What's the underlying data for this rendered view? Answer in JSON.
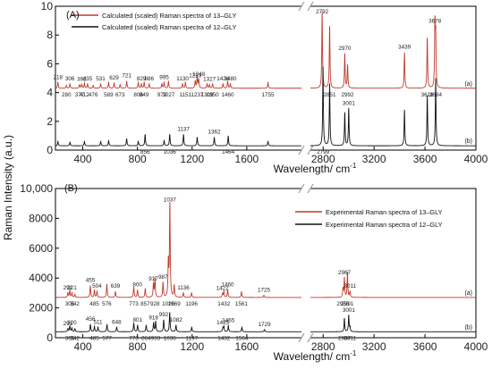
{
  "ylabel": "Raman Intensity (a.u.)",
  "xlabel": "Wavelength/ cm",
  "xlabel_sup": "-1",
  "colors": {
    "red": "#c0392b",
    "black": "#111111",
    "break": "#9a9a9a"
  },
  "chart_data": [
    {
      "type": "line",
      "panel_label": "(A)",
      "xlim_left": [
        200,
        2000
      ],
      "xlim_right": [
        2700,
        4000
      ],
      "xticks_left": [
        400,
        800,
        1200,
        1600
      ],
      "xticks_right": [
        2800,
        3200,
        3600,
        4000
      ],
      "xtick_labels_left": [
        "400",
        "800",
        "1200",
        "1600"
      ],
      "xtick_labels_right": [
        "2800",
        "3200",
        "3600",
        "4000"
      ],
      "ylim": [
        0,
        10
      ],
      "yticks": [
        0,
        2,
        4,
        6,
        8,
        10
      ],
      "ytick_labels": [
        "0",
        "2",
        "4",
        "6",
        "8",
        "10"
      ],
      "legend_position": "top-left",
      "series": [
        {
          "name": "Calculated (scaled) Raman spectra of 13–GLY",
          "trace_label": "(a)",
          "color": "red",
          "baseline": 4.3,
          "peaks": [
            {
              "x": 218,
              "h": 0.4,
              "label": "218"
            },
            {
              "x": 280,
              "h": 0.2,
              "label": "280"
            },
            {
              "x": 306,
              "h": 0.3,
              "label": "306"
            },
            {
              "x": 377,
              "h": 0.25,
              "label": "377"
            },
            {
              "x": 392,
              "h": 0.25,
              "label": "392"
            },
            {
              "x": 412,
              "h": 0.35,
              "label": "412"
            },
            {
              "x": 435,
              "h": 0.3,
              "label": "435"
            },
            {
              "x": 476,
              "h": 0.2,
              "label": "476"
            },
            {
              "x": 531,
              "h": 0.3,
              "label": "531"
            },
            {
              "x": 589,
              "h": 0.4,
              "label": "589"
            },
            {
              "x": 629,
              "h": 0.35,
              "label": "629"
            },
            {
              "x": 673,
              "h": 0.25,
              "label": "673"
            },
            {
              "x": 721,
              "h": 0.5,
              "label": "721"
            },
            {
              "x": 806,
              "h": 0.4,
              "label": "806"
            },
            {
              "x": 829,
              "h": 0.3,
              "label": "829"
            },
            {
              "x": 849,
              "h": 0.4,
              "label": "849"
            },
            {
              "x": 886,
              "h": 0.3,
              "label": "886"
            },
            {
              "x": 979,
              "h": 0.3,
              "label": "979"
            },
            {
              "x": 995,
              "h": 0.4,
              "label": "995"
            },
            {
              "x": 1027,
              "h": 0.5,
              "label": "1027"
            },
            {
              "x": 1130,
              "h": 0.3,
              "label": "1130"
            },
            {
              "x": 1151,
              "h": 0.4,
              "label": "1151"
            },
            {
              "x": 1223,
              "h": 0.5,
              "label": "1223"
            },
            {
              "x": 1237,
              "h": 0.8,
              "label": "1237"
            },
            {
              "x": 1248,
              "h": 0.6,
              "label": "1248"
            },
            {
              "x": 1309,
              "h": 0.3,
              "label": "1309"
            },
            {
              "x": 1327,
              "h": 0.25,
              "label": "1327"
            },
            {
              "x": 1350,
              "h": 0.3,
              "label": "1350"
            },
            {
              "x": 1426,
              "h": 0.3,
              "label": "1426"
            },
            {
              "x": 1460,
              "h": 0.5,
              "label": "1460"
            },
            {
              "x": 1480,
              "h": 0.3,
              "label": "1480"
            },
            {
              "x": 1755,
              "h": 0.4,
              "label": "1755"
            },
            {
              "x": 2792,
              "h": 5.3,
              "label": "2792"
            },
            {
              "x": 2851,
              "h": 4.3,
              "label": "2851"
            },
            {
              "x": 2970,
              "h": 2.4,
              "label": "2970"
            },
            {
              "x": 2992,
              "h": 1.6,
              "label": "2992"
            },
            {
              "x": 3439,
              "h": 2.5,
              "label": "3439"
            },
            {
              "x": 3618,
              "h": 3.5,
              "label": "3618"
            },
            {
              "x": 3678,
              "h": 4.3,
              "label": "3678"
            },
            {
              "x": 3684,
              "h": 3.4,
              "label": "3684"
            }
          ]
        },
        {
          "name": "Calculated (scaled) Raman spectra of 12–GLY",
          "trace_label": "(b)",
          "color": "black",
          "baseline": 0.3,
          "peaks": [
            {
              "x": 218,
              "h": 0.3
            },
            {
              "x": 306,
              "h": 0.25
            },
            {
              "x": 412,
              "h": 0.3
            },
            {
              "x": 531,
              "h": 0.3
            },
            {
              "x": 589,
              "h": 0.35
            },
            {
              "x": 721,
              "h": 0.5
            },
            {
              "x": 806,
              "h": 0.3
            },
            {
              "x": 856,
              "h": 0.8,
              "label": "856"
            },
            {
              "x": 995,
              "h": 0.35
            },
            {
              "x": 1036,
              "h": 0.8,
              "label": "1036"
            },
            {
              "x": 1137,
              "h": 0.8,
              "label": "1137"
            },
            {
              "x": 1237,
              "h": 0.6
            },
            {
              "x": 1362,
              "h": 0.6,
              "label": "1362"
            },
            {
              "x": 1464,
              "h": 0.7,
              "label": "1464"
            },
            {
              "x": 1755,
              "h": 0.3
            },
            {
              "x": 2799,
              "h": 5.5,
              "label": "2799"
            },
            {
              "x": 2851,
              "h": 4.3
            },
            {
              "x": 2970,
              "h": 2.3
            },
            {
              "x": 3001,
              "h": 2.6,
              "label": "3001"
            },
            {
              "x": 3439,
              "h": 2.5
            },
            {
              "x": 3618,
              "h": 3.5
            },
            {
              "x": 3684,
              "h": 4.7
            }
          ]
        }
      ]
    },
    {
      "type": "line",
      "panel_label": "(B)",
      "xlim_left": [
        200,
        2000
      ],
      "xlim_right": [
        2700,
        4000
      ],
      "xticks_left": [
        400,
        800,
        1200,
        1600
      ],
      "xticks_right": [
        2800,
        3200,
        3600,
        4000
      ],
      "xtick_labels_left": [
        "400",
        "800",
        "1200",
        "1600"
      ],
      "xtick_labels_right": [
        "2800",
        "3200",
        "3600",
        "4000"
      ],
      "ylim": [
        0,
        10000
      ],
      "yticks": [
        0,
        2000,
        4000,
        6000,
        8000,
        10000
      ],
      "ytick_labels": [
        "0",
        "2000",
        "4000",
        "6000",
        "8000",
        "10,000"
      ],
      "legend_position": "top-right",
      "series": [
        {
          "name": "Experimental Raman spectra of 13–GLY",
          "trace_label": "(a)",
          "color": "red",
          "baseline": 2700,
          "peaks": [
            {
              "x": 291,
              "h": 300,
              "label": "291"
            },
            {
              "x": 305,
              "h": 500,
              "label": "305"
            },
            {
              "x": 321,
              "h": 300,
              "label": "321"
            },
            {
              "x": 342,
              "h": 200,
              "label": "342"
            },
            {
              "x": 455,
              "h": 800,
              "label": "455"
            },
            {
              "x": 485,
              "h": 500,
              "label": "485"
            },
            {
              "x": 504,
              "h": 400,
              "label": "504"
            },
            {
              "x": 576,
              "h": 900,
              "label": "576"
            },
            {
              "x": 639,
              "h": 400,
              "label": "639"
            },
            {
              "x": 773,
              "h": 700,
              "label": "773"
            },
            {
              "x": 800,
              "h": 500,
              "label": "800"
            },
            {
              "x": 857,
              "h": 600,
              "label": "857"
            },
            {
              "x": 917,
              "h": 900,
              "label": "917"
            },
            {
              "x": 928,
              "h": 1300,
              "label": "928"
            },
            {
              "x": 987,
              "h": 1000,
              "label": "987"
            },
            {
              "x": 1026,
              "h": 2300,
              "label": "1026"
            },
            {
              "x": 1037,
              "h": 6200,
              "label": "1037"
            },
            {
              "x": 1069,
              "h": 800,
              "label": "1069"
            },
            {
              "x": 1136,
              "h": 300,
              "label": "1136"
            },
            {
              "x": 1196,
              "h": 300,
              "label": "1196"
            },
            {
              "x": 1422,
              "h": 250,
              "label": "1422"
            },
            {
              "x": 1432,
              "h": 400,
              "label": "1432"
            },
            {
              "x": 1460,
              "h": 500,
              "label": "1460"
            },
            {
              "x": 1561,
              "h": 400,
              "label": "1561"
            },
            {
              "x": 1725,
              "h": 150,
              "label": "1725"
            },
            {
              "x": 2956,
              "h": 600,
              "label": "2956"
            },
            {
              "x": 2967,
              "h": 1300,
              "label": "2967"
            },
            {
              "x": 2991,
              "h": 1700,
              "label": "2991"
            },
            {
              "x": 3011,
              "h": 400,
              "label": "3011"
            }
          ]
        },
        {
          "name": "Experimental Raman spectra of 12–GLY",
          "trace_label": "(b)",
          "color": "black",
          "baseline": 400,
          "peaks": [
            {
              "x": 291,
              "h": 200,
              "label": "291"
            },
            {
              "x": 305,
              "h": 400,
              "label": "305"
            },
            {
              "x": 320,
              "h": 250,
              "label": "320"
            },
            {
              "x": 342,
              "h": 200,
              "label": "342"
            },
            {
              "x": 456,
              "h": 500,
              "label": "456"
            },
            {
              "x": 485,
              "h": 350,
              "label": "485"
            },
            {
              "x": 511,
              "h": 300,
              "label": "511"
            },
            {
              "x": 577,
              "h": 500,
              "label": "577"
            },
            {
              "x": 648,
              "h": 300,
              "label": "648"
            },
            {
              "x": 773,
              "h": 600,
              "label": "773"
            },
            {
              "x": 801,
              "h": 450,
              "label": "801"
            },
            {
              "x": 864,
              "h": 450,
              "label": "864"
            },
            {
              "x": 918,
              "h": 600,
              "label": "918"
            },
            {
              "x": 933,
              "h": 700,
              "label": "933"
            },
            {
              "x": 992,
              "h": 800,
              "label": "992"
            },
            {
              "x": 1036,
              "h": 1300,
              "label": "1036"
            },
            {
              "x": 1082,
              "h": 450,
              "label": "1082"
            },
            {
              "x": 1197,
              "h": 300,
              "label": "1197"
            },
            {
              "x": 1425,
              "h": 250,
              "label": "1425"
            },
            {
              "x": 1432,
              "h": 350,
              "label": "1432"
            },
            {
              "x": 1465,
              "h": 400,
              "label": "1465"
            },
            {
              "x": 1564,
              "h": 300,
              "label": "1564"
            },
            {
              "x": 1729,
              "h": 150,
              "label": "1729"
            },
            {
              "x": 2967,
              "h": 900,
              "label": "2967"
            },
            {
              "x": 3001,
              "h": 1100,
              "label": "3001"
            },
            {
              "x": 3011,
              "h": 300,
              "label": "3011"
            }
          ]
        }
      ]
    }
  ]
}
